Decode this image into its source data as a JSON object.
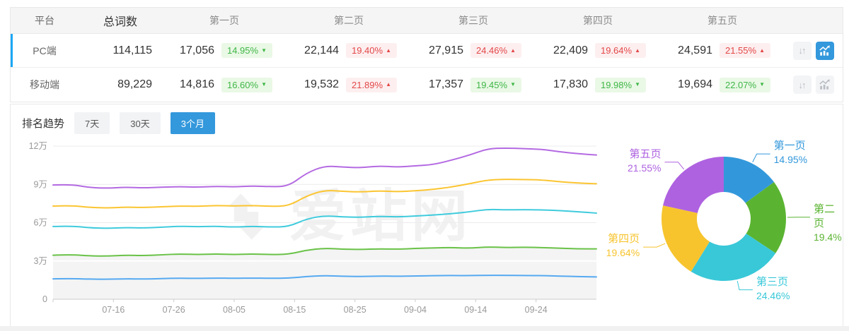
{
  "colors": {
    "accent_blue": "#3398dc",
    "row_accent_blue": "#1ba7f5",
    "badge_up_red": "#e34848",
    "badge_down_green": "#3fb747"
  },
  "icons": {
    "sort": "↓↑"
  },
  "table": {
    "headers": [
      "平台",
      "总词数",
      "第一页",
      "第二页",
      "第三页",
      "第四页",
      "第五页"
    ],
    "rows": [
      {
        "platform": "PC端",
        "total": "114,115",
        "active": true,
        "pages": [
          {
            "count": "17,056",
            "pct": "14.95%",
            "dir": "down"
          },
          {
            "count": "22,144",
            "pct": "19.40%",
            "dir": "up"
          },
          {
            "count": "27,915",
            "pct": "24.46%",
            "dir": "up"
          },
          {
            "count": "22,409",
            "pct": "19.64%",
            "dir": "up"
          },
          {
            "count": "24,591",
            "pct": "21.55%",
            "dir": "up"
          }
        ]
      },
      {
        "platform": "移动端",
        "total": "89,229",
        "active": false,
        "pages": [
          {
            "count": "14,816",
            "pct": "16.60%",
            "dir": "down"
          },
          {
            "count": "19,532",
            "pct": "21.89%",
            "dir": "up"
          },
          {
            "count": "17,357",
            "pct": "19.45%",
            "dir": "down"
          },
          {
            "count": "17,830",
            "pct": "19.98%",
            "dir": "down"
          },
          {
            "count": "19,694",
            "pct": "22.07%",
            "dir": "down"
          }
        ]
      }
    ]
  },
  "trend": {
    "title": "排名趋势",
    "tabs": [
      {
        "label": "7天",
        "active": false
      },
      {
        "label": "30天",
        "active": false
      },
      {
        "label": "3个月",
        "active": true
      }
    ],
    "watermark": "爱站网"
  },
  "chart_data": [
    {
      "type": "line",
      "title": "排名趋势 3个月",
      "unit": "万",
      "ylim": [
        0,
        12
      ],
      "yticks": [
        {
          "label": "12万",
          "v": 12
        },
        {
          "label": "9万",
          "v": 9
        },
        {
          "label": "6万",
          "v": 6
        },
        {
          "label": "3万",
          "v": 3
        },
        {
          "label": "0",
          "v": 0
        }
      ],
      "x_tick_days": [
        10,
        20,
        30,
        40,
        50,
        60,
        70,
        80
      ],
      "x_tick_labels": [
        "07-16",
        "07-26",
        "08-05",
        "08-15",
        "08-25",
        "09-04",
        "09-14",
        "09-24"
      ],
      "x_days": [
        0,
        3,
        6,
        9,
        12,
        15,
        18,
        21,
        24,
        27,
        30,
        33,
        36,
        39,
        42,
        45,
        48,
        51,
        54,
        57,
        60,
        63,
        66,
        69,
        72,
        75,
        78,
        81,
        84,
        87,
        90
      ],
      "x_domain": [
        0,
        90
      ],
      "series": [
        {
          "name": "第一页",
          "color": "#55a9f1",
          "area": false,
          "values": [
            1.6,
            1.62,
            1.58,
            1.56,
            1.6,
            1.58,
            1.62,
            1.65,
            1.63,
            1.66,
            1.64,
            1.66,
            1.64,
            1.65,
            1.78,
            1.85,
            1.8,
            1.78,
            1.82,
            1.8,
            1.82,
            1.85,
            1.86,
            1.85,
            1.88,
            1.87,
            1.86,
            1.85,
            1.82,
            1.77,
            1.75
          ]
        },
        {
          "name": "第二页",
          "color": "#69c247",
          "area": true,
          "values": [
            3.45,
            3.5,
            3.4,
            3.38,
            3.45,
            3.42,
            3.48,
            3.55,
            3.5,
            3.55,
            3.5,
            3.55,
            3.5,
            3.52,
            3.85,
            4.0,
            3.92,
            3.9,
            3.95,
            3.92,
            3.98,
            4.02,
            4.05,
            4.0,
            4.1,
            4.05,
            4.08,
            4.05,
            4.0,
            3.95,
            3.95
          ]
        },
        {
          "name": "第三页",
          "color": "#3fcbdd",
          "area": false,
          "values": [
            5.7,
            5.75,
            5.6,
            5.55,
            5.62,
            5.58,
            5.65,
            5.72,
            5.68,
            5.72,
            5.65,
            5.72,
            5.66,
            5.68,
            6.3,
            6.55,
            6.45,
            6.42,
            6.5,
            6.45,
            6.52,
            6.6,
            6.7,
            6.85,
            7.05,
            7.0,
            7.02,
            7.0,
            6.95,
            6.85,
            6.75
          ]
        },
        {
          "name": "第四页",
          "color": "#fbc531",
          "area": false,
          "values": [
            7.3,
            7.35,
            7.2,
            7.15,
            7.22,
            7.18,
            7.25,
            7.3,
            7.28,
            7.35,
            7.3,
            7.35,
            7.28,
            7.3,
            8.1,
            8.55,
            8.45,
            8.4,
            8.5,
            8.42,
            8.5,
            8.6,
            8.8,
            9.05,
            9.35,
            9.4,
            9.38,
            9.35,
            9.2,
            9.1,
            9.05
          ]
        },
        {
          "name": "第五页",
          "color": "#b46ae2",
          "area": false,
          "values": [
            8.95,
            9.0,
            8.75,
            8.7,
            8.78,
            8.72,
            8.78,
            8.82,
            8.78,
            8.85,
            8.8,
            8.88,
            8.82,
            8.85,
            9.9,
            10.45,
            10.35,
            10.3,
            10.45,
            10.35,
            10.45,
            10.55,
            10.9,
            11.3,
            11.8,
            11.85,
            11.8,
            11.75,
            11.55,
            11.4,
            11.3
          ]
        }
      ]
    },
    {
      "type": "donut",
      "slices": [
        {
          "name": "第一页",
          "pct_label": "14.95%",
          "value": 14.95,
          "color": "#3398db"
        },
        {
          "name": "第二页",
          "pct_label": "19.4%",
          "value": 19.4,
          "color": "#5ab431"
        },
        {
          "name": "第三页",
          "pct_label": "24.46%",
          "value": 24.46,
          "color": "#39c8d8"
        },
        {
          "name": "第四页",
          "pct_label": "19.64%",
          "value": 19.64,
          "color": "#f7c42e"
        },
        {
          "name": "第五页",
          "pct_label": "21.55%",
          "value": 21.55,
          "color": "#ae62e0"
        }
      ]
    }
  ]
}
